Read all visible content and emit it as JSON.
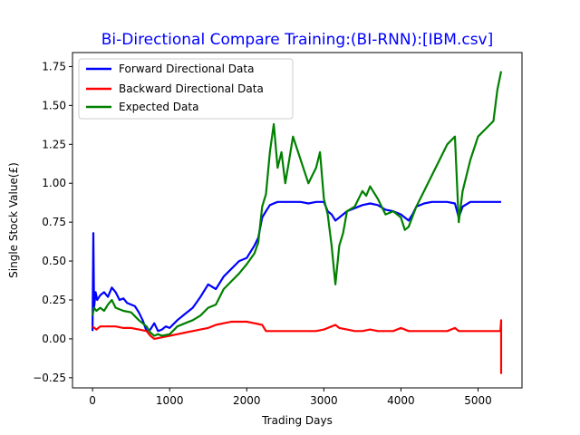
{
  "chart_data": {
    "type": "line",
    "title": "Bi-Directional Compare Training:(BI-RNN):[IBM.csv]",
    "title_color": "#0000ff",
    "xlabel": "Trading Days",
    "ylabel": "Single Stock Value(£)",
    "xlim": [
      -260,
      5570
    ],
    "ylim": [
      -0.315,
      1.84
    ],
    "x_ticks": [
      0,
      1000,
      2000,
      3000,
      4000,
      5000
    ],
    "x_tick_labels": [
      "0",
      "1000",
      "2000",
      "3000",
      "4000",
      "5000"
    ],
    "y_ticks": [
      -0.25,
      0.0,
      0.25,
      0.5,
      0.75,
      1.0,
      1.25,
      1.5,
      1.75
    ],
    "y_tick_labels": [
      "−0.25",
      "0.00",
      "0.25",
      "0.50",
      "0.75",
      "1.00",
      "1.25",
      "1.50",
      "1.75"
    ],
    "grid": false,
    "legend_position": "upper-left",
    "series": [
      {
        "name": "Forward Directional Data",
        "color": "#0000ff",
        "x": [
          0,
          10,
          20,
          40,
          60,
          100,
          150,
          200,
          250,
          300,
          350,
          400,
          450,
          500,
          550,
          600,
          650,
          700,
          750,
          800,
          850,
          900,
          950,
          1000,
          1100,
          1200,
          1300,
          1400,
          1500,
          1600,
          1700,
          1800,
          1900,
          2000,
          2100,
          2150,
          2200,
          2250,
          2300,
          2350,
          2400,
          2500,
          2600,
          2700,
          2800,
          2900,
          3000,
          3050,
          3100,
          3150,
          3200,
          3300,
          3400,
          3500,
          3600,
          3700,
          3800,
          3900,
          4000,
          4100,
          4150,
          4200,
          4300,
          4400,
          4500,
          4600,
          4700,
          4750,
          4800,
          4900,
          5000,
          5100,
          5200,
          5300
        ],
        "y": [
          0.05,
          0.68,
          0.2,
          0.3,
          0.25,
          0.28,
          0.3,
          0.27,
          0.33,
          0.3,
          0.25,
          0.26,
          0.23,
          0.22,
          0.21,
          0.17,
          0.12,
          0.05,
          0.06,
          0.1,
          0.05,
          0.06,
          0.08,
          0.07,
          0.12,
          0.16,
          0.2,
          0.27,
          0.35,
          0.32,
          0.4,
          0.45,
          0.5,
          0.52,
          0.6,
          0.65,
          0.78,
          0.82,
          0.86,
          0.87,
          0.88,
          0.88,
          0.88,
          0.88,
          0.87,
          0.88,
          0.88,
          0.82,
          0.8,
          0.76,
          0.78,
          0.82,
          0.84,
          0.86,
          0.87,
          0.86,
          0.83,
          0.82,
          0.8,
          0.76,
          0.8,
          0.85,
          0.87,
          0.88,
          0.88,
          0.88,
          0.87,
          0.78,
          0.85,
          0.88,
          0.88,
          0.88,
          0.88,
          0.88
        ]
      },
      {
        "name": "Backward Directional Data",
        "color": "#ff0000",
        "x": [
          0,
          50,
          100,
          200,
          300,
          400,
          500,
          600,
          700,
          750,
          800,
          900,
          1000,
          1100,
          1200,
          1300,
          1400,
          1500,
          1600,
          1700,
          1800,
          1900,
          2000,
          2100,
          2200,
          2250,
          2300,
          2500,
          2700,
          2900,
          3000,
          3100,
          3150,
          3200,
          3300,
          3400,
          3500,
          3600,
          3700,
          3800,
          3900,
          4000,
          4100,
          4200,
          4400,
          4600,
          4700,
          4750,
          4800,
          5000,
          5290,
          5300,
          5300,
          5300
        ],
        "y": [
          0.08,
          0.06,
          0.08,
          0.08,
          0.08,
          0.07,
          0.07,
          0.06,
          0.05,
          0.02,
          0.0,
          0.01,
          0.02,
          0.03,
          0.04,
          0.05,
          0.06,
          0.07,
          0.09,
          0.1,
          0.11,
          0.11,
          0.11,
          0.1,
          0.09,
          0.05,
          0.05,
          0.05,
          0.05,
          0.05,
          0.06,
          0.08,
          0.09,
          0.07,
          0.06,
          0.05,
          0.05,
          0.06,
          0.05,
          0.05,
          0.05,
          0.07,
          0.05,
          0.05,
          0.05,
          0.05,
          0.07,
          0.05,
          0.05,
          0.05,
          0.05,
          0.12,
          -0.22,
          0.05
        ]
      },
      {
        "name": "Expected Data",
        "color": "#008000",
        "x": [
          0,
          20,
          50,
          100,
          150,
          200,
          250,
          300,
          400,
          500,
          600,
          700,
          750,
          800,
          850,
          900,
          1000,
          1100,
          1200,
          1300,
          1400,
          1500,
          1600,
          1700,
          1800,
          1900,
          2000,
          2100,
          2150,
          2200,
          2250,
          2300,
          2350,
          2400,
          2450,
          2500,
          2550,
          2600,
          2700,
          2800,
          2900,
          2950,
          3000,
          3050,
          3100,
          3150,
          3200,
          3250,
          3300,
          3400,
          3500,
          3550,
          3600,
          3700,
          3800,
          3900,
          4000,
          4050,
          4100,
          4200,
          4300,
          4400,
          4500,
          4600,
          4700,
          4750,
          4800,
          4900,
          5000,
          5100,
          5200,
          5250,
          5300
        ],
        "y": [
          0.15,
          0.2,
          0.18,
          0.2,
          0.18,
          0.22,
          0.25,
          0.2,
          0.18,
          0.17,
          0.12,
          0.08,
          0.04,
          0.02,
          0.03,
          0.02,
          0.03,
          0.08,
          0.1,
          0.12,
          0.15,
          0.2,
          0.22,
          0.32,
          0.37,
          0.42,
          0.48,
          0.55,
          0.62,
          0.85,
          0.93,
          1.2,
          1.38,
          1.1,
          1.2,
          1.0,
          1.15,
          1.3,
          1.15,
          1.0,
          1.1,
          1.2,
          0.9,
          0.8,
          0.6,
          0.35,
          0.6,
          0.68,
          0.82,
          0.85,
          0.95,
          0.92,
          0.98,
          0.9,
          0.8,
          0.82,
          0.78,
          0.7,
          0.72,
          0.85,
          0.95,
          1.05,
          1.15,
          1.25,
          1.3,
          0.75,
          0.95,
          1.15,
          1.3,
          1.35,
          1.4,
          1.6,
          1.72
        ]
      }
    ]
  }
}
